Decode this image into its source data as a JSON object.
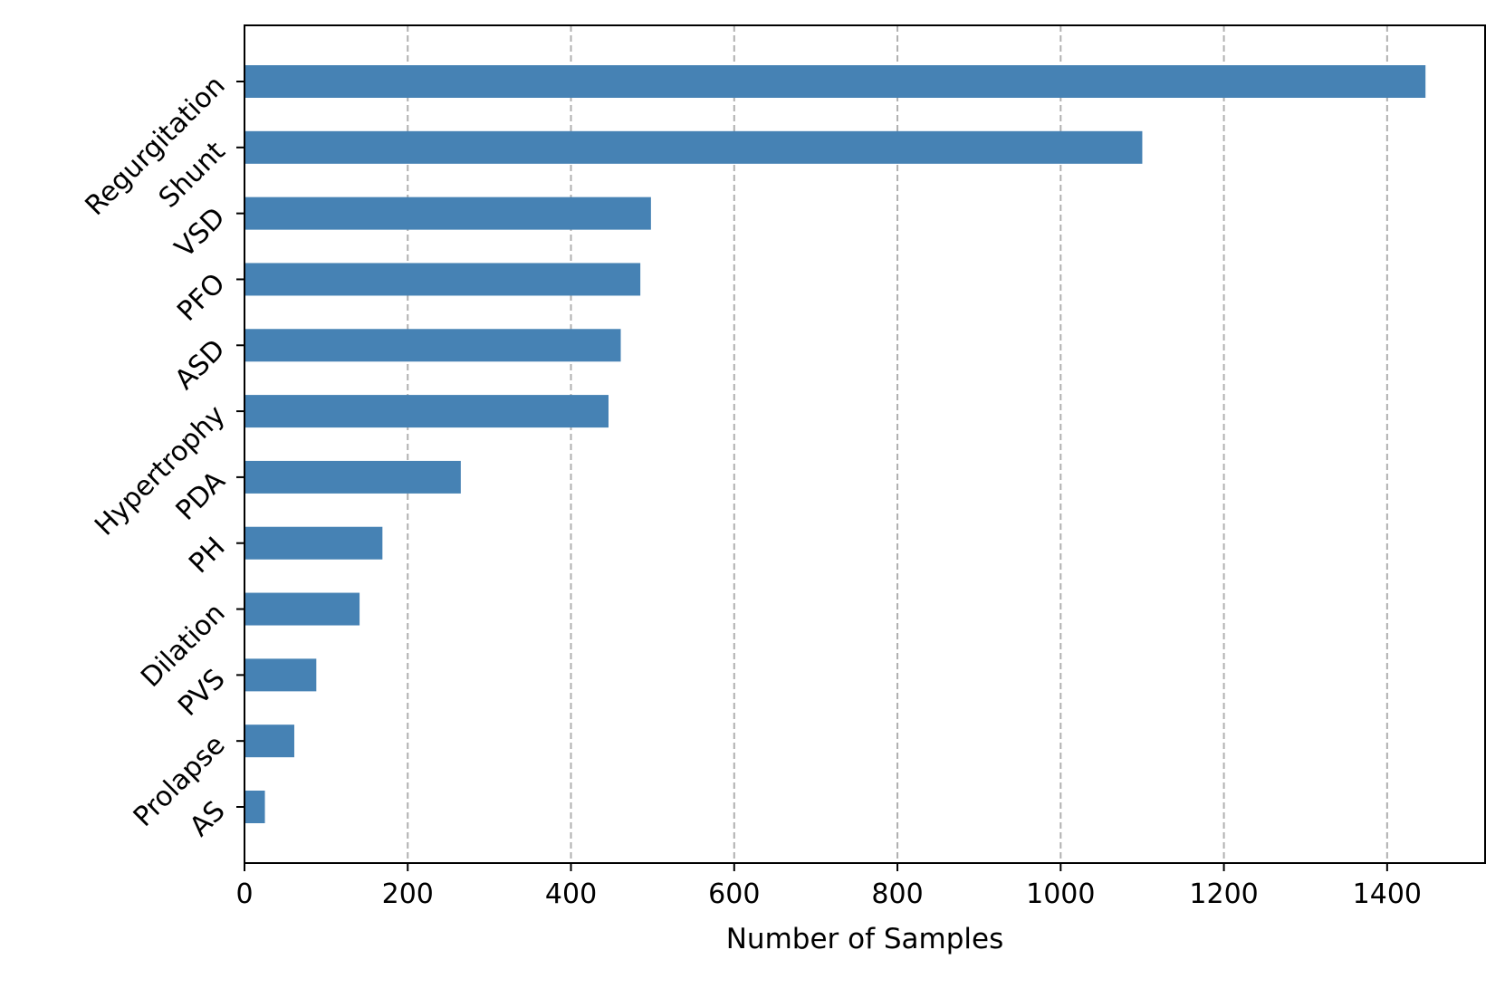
{
  "chart_data": {
    "type": "bar",
    "orientation": "horizontal",
    "title": "",
    "xlabel": "Number of Samples",
    "ylabel": "",
    "categories": [
      "Regurgitation",
      "Shunt",
      "VSD",
      "PFO",
      "ASD",
      "Hypertrophy",
      "PDA",
      "PH",
      "Dilation",
      "PVS",
      "Prolapse",
      "AS"
    ],
    "values": [
      1447,
      1100,
      498,
      485,
      461,
      446,
      265,
      169,
      141,
      88,
      61,
      25
    ],
    "xlim": [
      0,
      1520
    ],
    "xticks": [
      0,
      200,
      400,
      600,
      800,
      1000,
      1200,
      1400
    ],
    "xtick_labels": [
      "0",
      "200",
      "400",
      "600",
      "800",
      "1000",
      "1200",
      "1400"
    ],
    "grid": "x-axis dashed",
    "legend": "none",
    "bar_color": "#4682b4",
    "grid_color": "#b0b0b0"
  }
}
